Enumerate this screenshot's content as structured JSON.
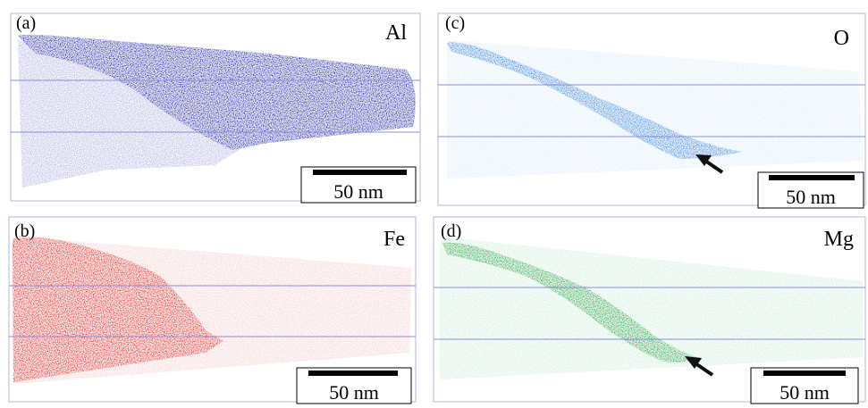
{
  "panels": [
    {
      "label": "(a)",
      "element": "Al",
      "scale_bar": "50 nm"
    },
    {
      "label": "(b)",
      "element": "Fe",
      "scale_bar": "50 nm"
    },
    {
      "label": "(c)",
      "element": "O",
      "scale_bar": "50 nm"
    },
    {
      "label": "(d)",
      "element": "Mg",
      "scale_bar": "50 nm"
    }
  ]
}
